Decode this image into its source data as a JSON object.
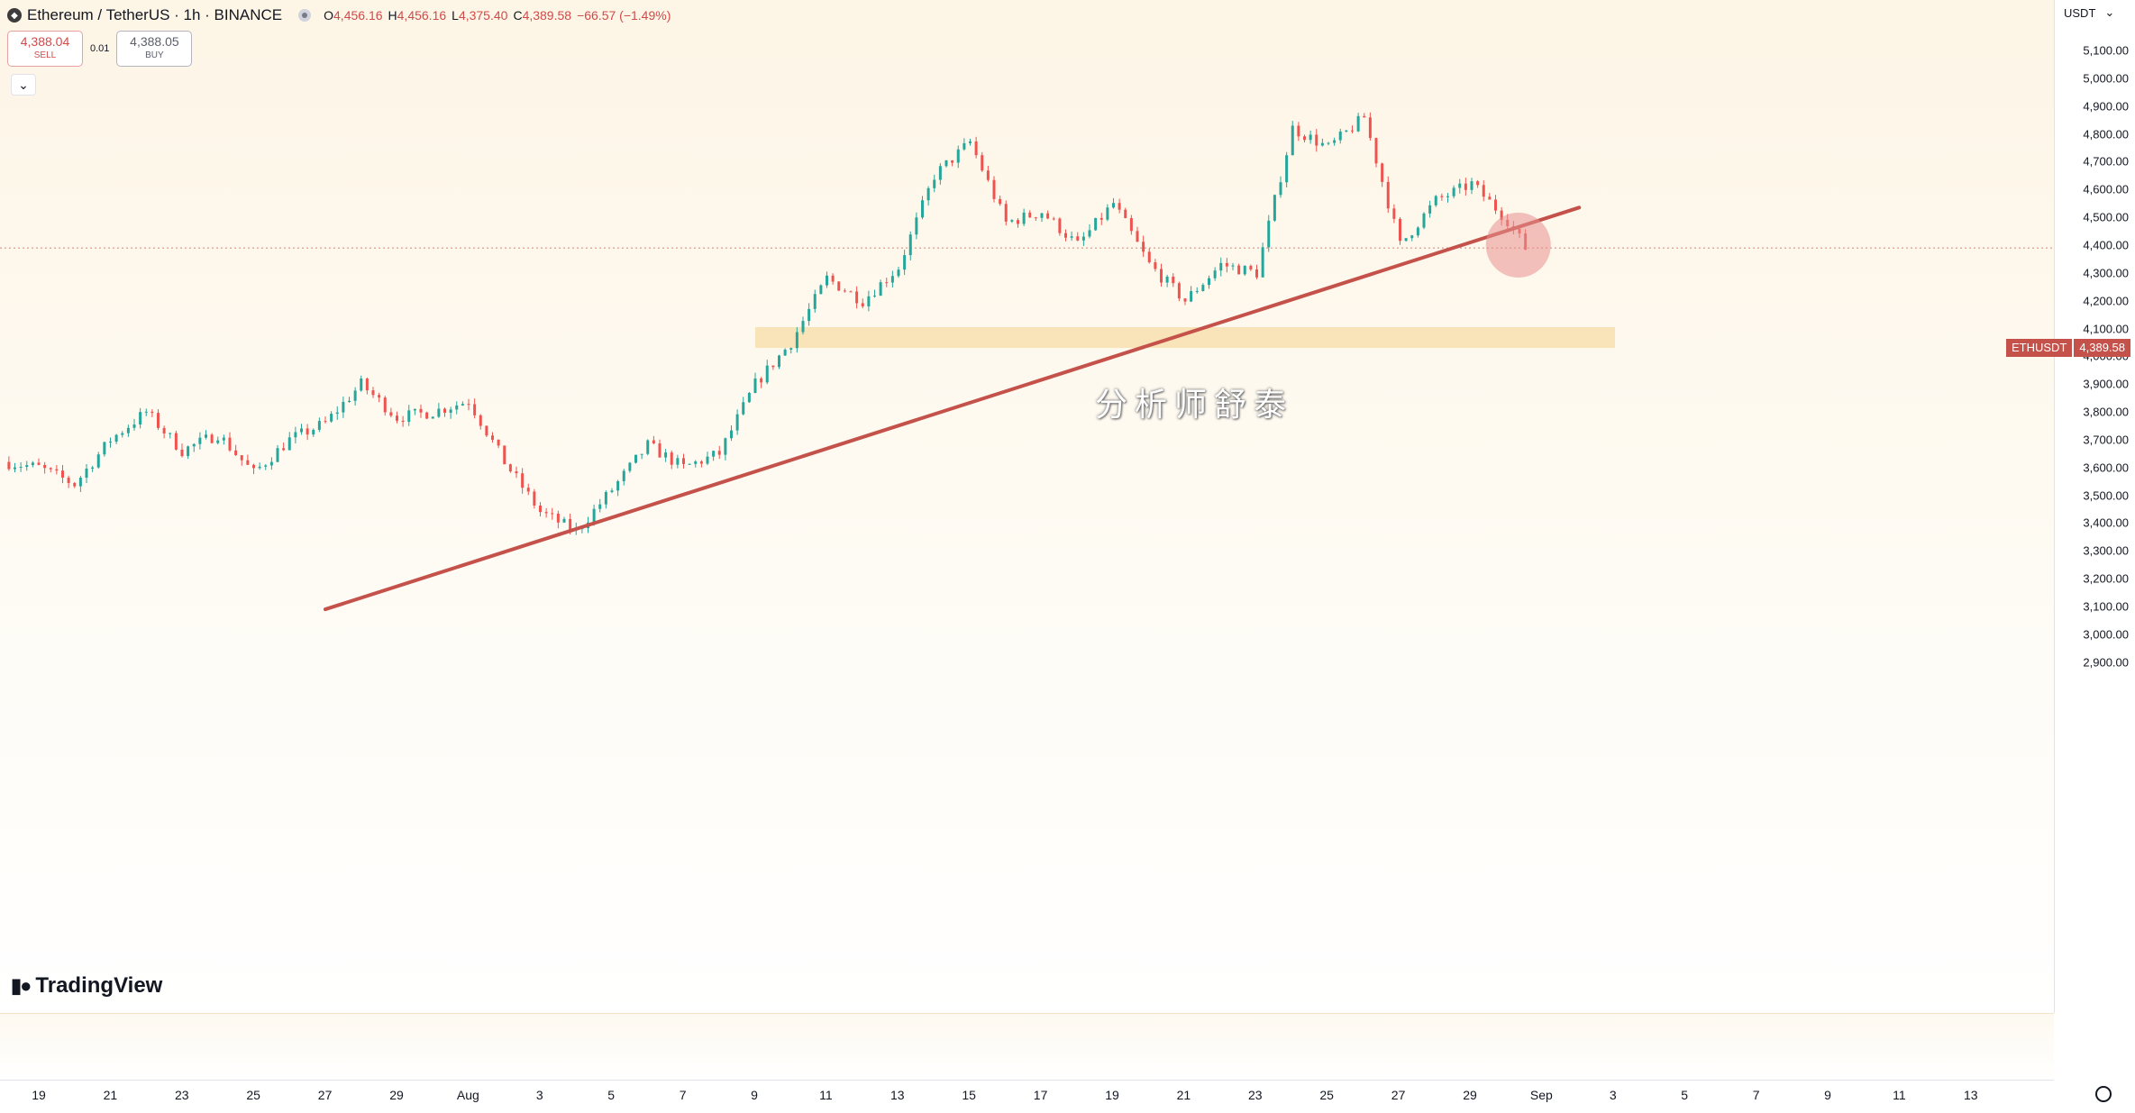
{
  "header": {
    "symbol": "Ethereum / TetherUS · 1h · BINANCE",
    "ohlc": [
      {
        "k": "O",
        "v": "4,456.16"
      },
      {
        "k": "H",
        "v": "4,456.16"
      },
      {
        "k": "L",
        "v": "4,375.40"
      },
      {
        "k": "C",
        "v": "4,389.58"
      },
      {
        "k": "",
        "v": "−66.57 (−1.49%)"
      }
    ]
  },
  "trade": {
    "sell_price": "4,388.04",
    "sell_label": "SELL",
    "spread": "0.01",
    "buy_price": "4,388.05",
    "buy_label": "BUY"
  },
  "currency": "USDT",
  "last_price": {
    "name": "ETHUSDT",
    "value": "4,389.58"
  },
  "watermark": "分析师舒泰",
  "brand": "TradingView",
  "colors": {
    "up": "#26a69a",
    "down": "#ef5350",
    "trendline": "#c4524b",
    "zone": "#f8dfae",
    "highlight": "#e88f8f"
  },
  "chart_data": {
    "type": "candlestick",
    "symbol": "ETHUSDT",
    "interval": "1h",
    "x_ticks": [
      "19",
      "21",
      "23",
      "25",
      "27",
      "29",
      "Aug",
      "3",
      "5",
      "7",
      "9",
      "11",
      "13",
      "15",
      "17",
      "19",
      "21",
      "23",
      "25",
      "27",
      "29",
      "Sep",
      "3",
      "5",
      "7",
      "9",
      "11",
      "13"
    ],
    "y_ticks": [
      "5,100.00",
      "5,000.00",
      "4,900.00",
      "4,800.00",
      "4,700.00",
      "4,600.00",
      "4,500.00",
      "4,400.00",
      "4,300.00",
      "4,200.00",
      "4,100.00",
      "4,000.00",
      "3,900.00",
      "3,800.00",
      "3,700.00",
      "3,600.00",
      "3,500.00",
      "3,400.00",
      "3,300.00",
      "3,200.00",
      "3,100.00",
      "3,000.00",
      "2,900.00"
    ],
    "ylim": [
      2850,
      5130
    ],
    "price_path": [
      [
        "Jul 18",
        3620
      ],
      [
        "Jul 19",
        3600
      ],
      [
        "Jul 20",
        3540
      ],
      [
        "Jul 21",
        3700
      ],
      [
        "Jul 22",
        3800
      ],
      [
        "Jul 23",
        3660
      ],
      [
        "Jul 24",
        3720
      ],
      [
        "Jul 25",
        3580
      ],
      [
        "Jul 26",
        3700
      ],
      [
        "Jul 27",
        3760
      ],
      [
        "Jul 28",
        3900
      ],
      [
        "Jul 29",
        3780
      ],
      [
        "Jul 30",
        3800
      ],
      [
        "Jul 31",
        3840
      ],
      [
        "Aug 1",
        3620
      ],
      [
        "Aug 2",
        3440
      ],
      [
        "Aug 3",
        3370
      ],
      [
        "Aug 4",
        3520
      ],
      [
        "Aug 5",
        3680
      ],
      [
        "Aug 6",
        3600
      ],
      [
        "Aug 7",
        3650
      ],
      [
        "Aug 8",
        3900
      ],
      [
        "Aug 9",
        4050
      ],
      [
        "Aug 10",
        4280
      ],
      [
        "Aug 11",
        4200
      ],
      [
        "Aug 12",
        4320
      ],
      [
        "Aug 13",
        4650
      ],
      [
        "Aug 14",
        4770
      ],
      [
        "Aug 15",
        4480
      ],
      [
        "Aug 16",
        4520
      ],
      [
        "Aug 17",
        4400
      ],
      [
        "Aug 18",
        4550
      ],
      [
        "Aug 19",
        4330
      ],
      [
        "Aug 20",
        4200
      ],
      [
        "Aug 21",
        4330
      ],
      [
        "Aug 22",
        4300
      ],
      [
        "Aug 23",
        4820
      ],
      [
        "Aug 24",
        4750
      ],
      [
        "Aug 25",
        4860
      ],
      [
        "Aug 26",
        4400
      ],
      [
        "Aug 27",
        4560
      ],
      [
        "Aug 28",
        4620
      ],
      [
        "Aug 29",
        4490
      ],
      [
        "Aug 29 12h",
        4389.58
      ]
    ],
    "trendline": {
      "from": [
        "Jul 27",
        3090
      ],
      "to": [
        "Aug 31",
        4535
      ]
    },
    "zone": {
      "from": "Aug 8",
      "to": "Sep 1",
      "ylim": [
        4030,
        4105
      ]
    },
    "highlight": [
      "Aug 29",
      4400
    ],
    "last_price": 4389.58
  }
}
